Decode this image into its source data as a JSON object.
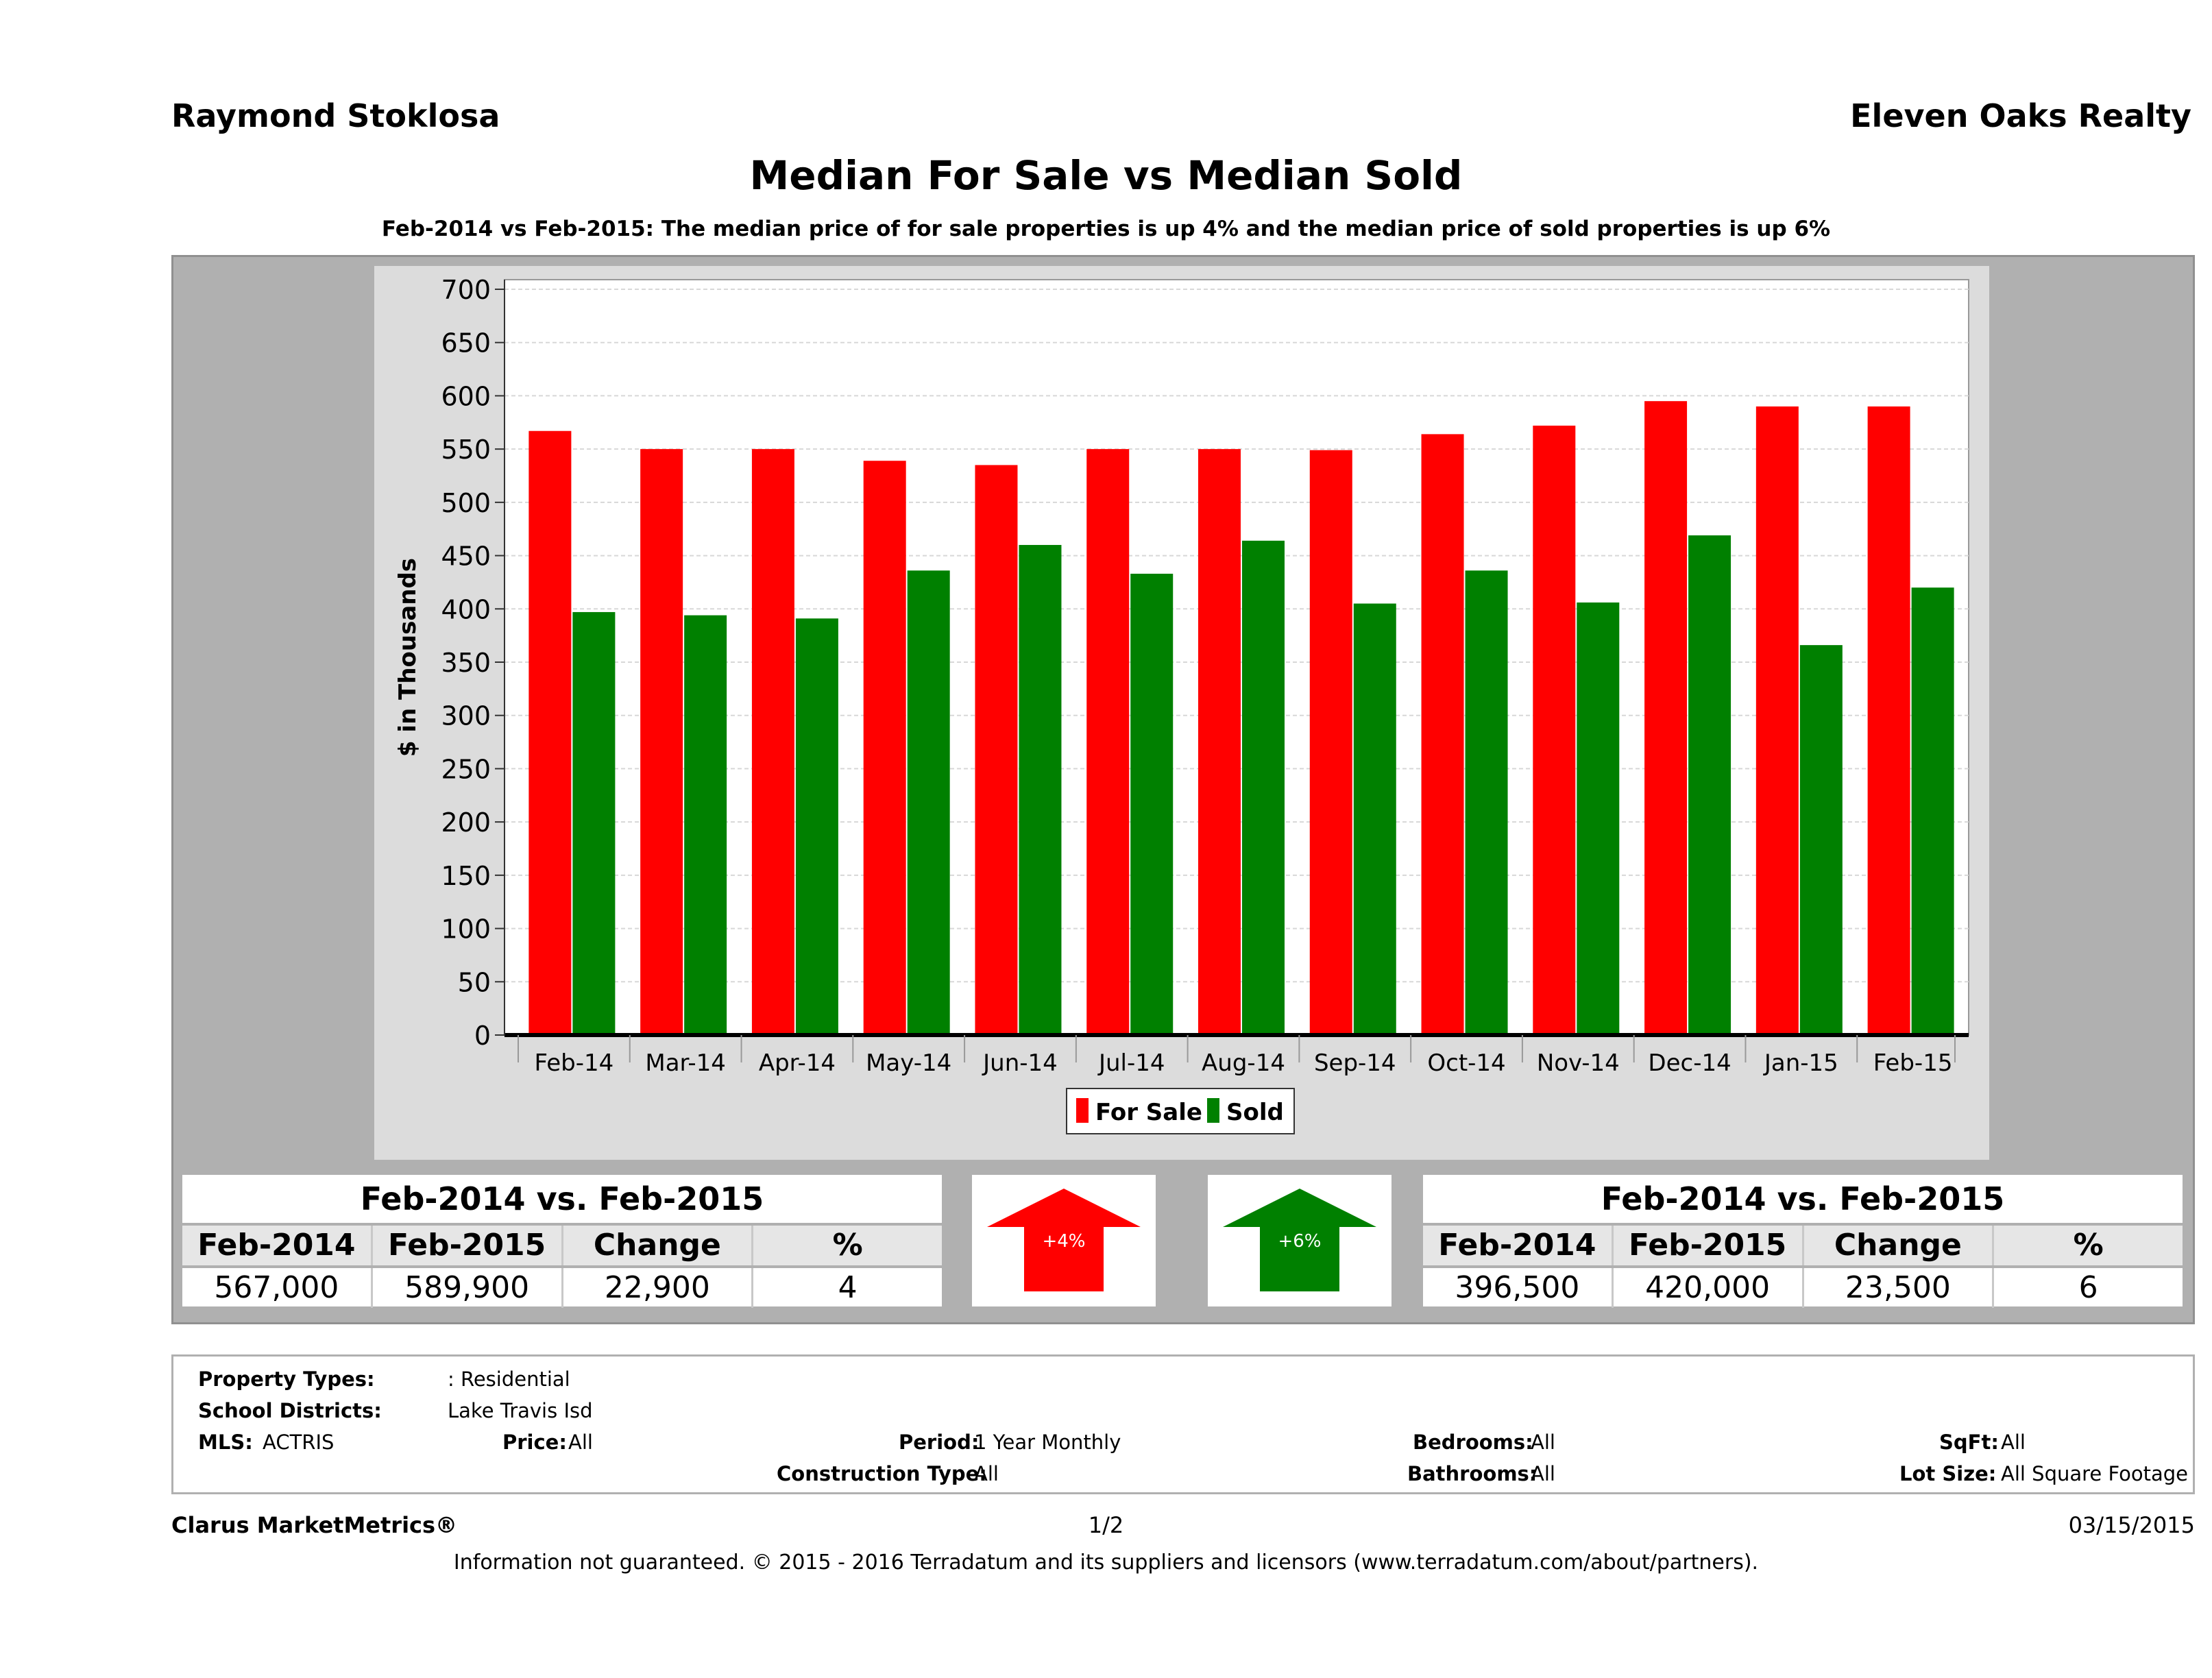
{
  "header": {
    "agent": "Raymond Stoklosa",
    "company": "Eleven Oaks Realty",
    "title": "Median For Sale vs Median Sold",
    "subtitle": "Feb-2014 vs Feb-2015: The median price of for sale properties is up 4% and the median price of sold properties is up 6%"
  },
  "chart_data": {
    "type": "bar",
    "ylabel": "$ in Thousands",
    "ylim": [
      0,
      700
    ],
    "yticks": [
      0,
      50,
      100,
      150,
      200,
      250,
      300,
      350,
      400,
      450,
      500,
      550,
      600,
      650,
      700
    ],
    "grid": true,
    "legend_position": "bottom",
    "categories": [
      "Feb-14",
      "Mar-14",
      "Apr-14",
      "May-14",
      "Jun-14",
      "Jul-14",
      "Aug-14",
      "Sep-14",
      "Oct-14",
      "Nov-14",
      "Dec-14",
      "Jan-15",
      "Feb-15"
    ],
    "series": [
      {
        "name": "For Sale",
        "color": "#ff0000",
        "values": [
          567,
          550,
          550,
          539,
          535,
          550,
          550,
          549,
          564,
          572,
          595,
          590,
          590
        ]
      },
      {
        "name": "Sold",
        "color": "#008000",
        "values": [
          397,
          394,
          391,
          436,
          460,
          433,
          464,
          405,
          436,
          406,
          469,
          366,
          420
        ]
      }
    ]
  },
  "for_sale_summary": {
    "caption": "Feb-2014 vs. Feb-2015",
    "headers": [
      "Feb-2014",
      "Feb-2015",
      "Change",
      "%"
    ],
    "values": [
      "567,000",
      "589,900",
      "22,900",
      "4"
    ],
    "badge": "+4%",
    "color": "#ff0000"
  },
  "sold_summary": {
    "caption": "Feb-2014 vs. Feb-2015",
    "headers": [
      "Feb-2014",
      "Feb-2015",
      "Change",
      "%"
    ],
    "values": [
      "396,500",
      "420,000",
      "23,500",
      "6"
    ],
    "badge": "+6%",
    "color": "#008000"
  },
  "details": {
    "property_types_label": "Property Types:",
    "property_types": ": Residential",
    "school_districts_label": "School Districts:",
    "school_districts": "Lake Travis Isd",
    "mls_label": "MLS:",
    "mls": "ACTRIS",
    "price_label": "Price:",
    "price": "All",
    "period_label": "Period:",
    "period": "1 Year Monthly",
    "construction_label": "Construction Type:",
    "construction": "All",
    "bedrooms_label": "Bedrooms:",
    "bedrooms": "All",
    "bathrooms_label": "Bathrooms:",
    "bathrooms": "All",
    "sqft_label": "SqFt:",
    "sqft": "All",
    "lot_label": "Lot Size:",
    "lot": "All Square Footage"
  },
  "footer": {
    "brand": "Clarus MarketMetrics®",
    "page": "1/2",
    "date": "03/15/2015",
    "disclaimer": "Information not guaranteed. © 2015 - 2016 Terradatum and its suppliers and licensors (www.terradatum.com/about/partners)."
  }
}
